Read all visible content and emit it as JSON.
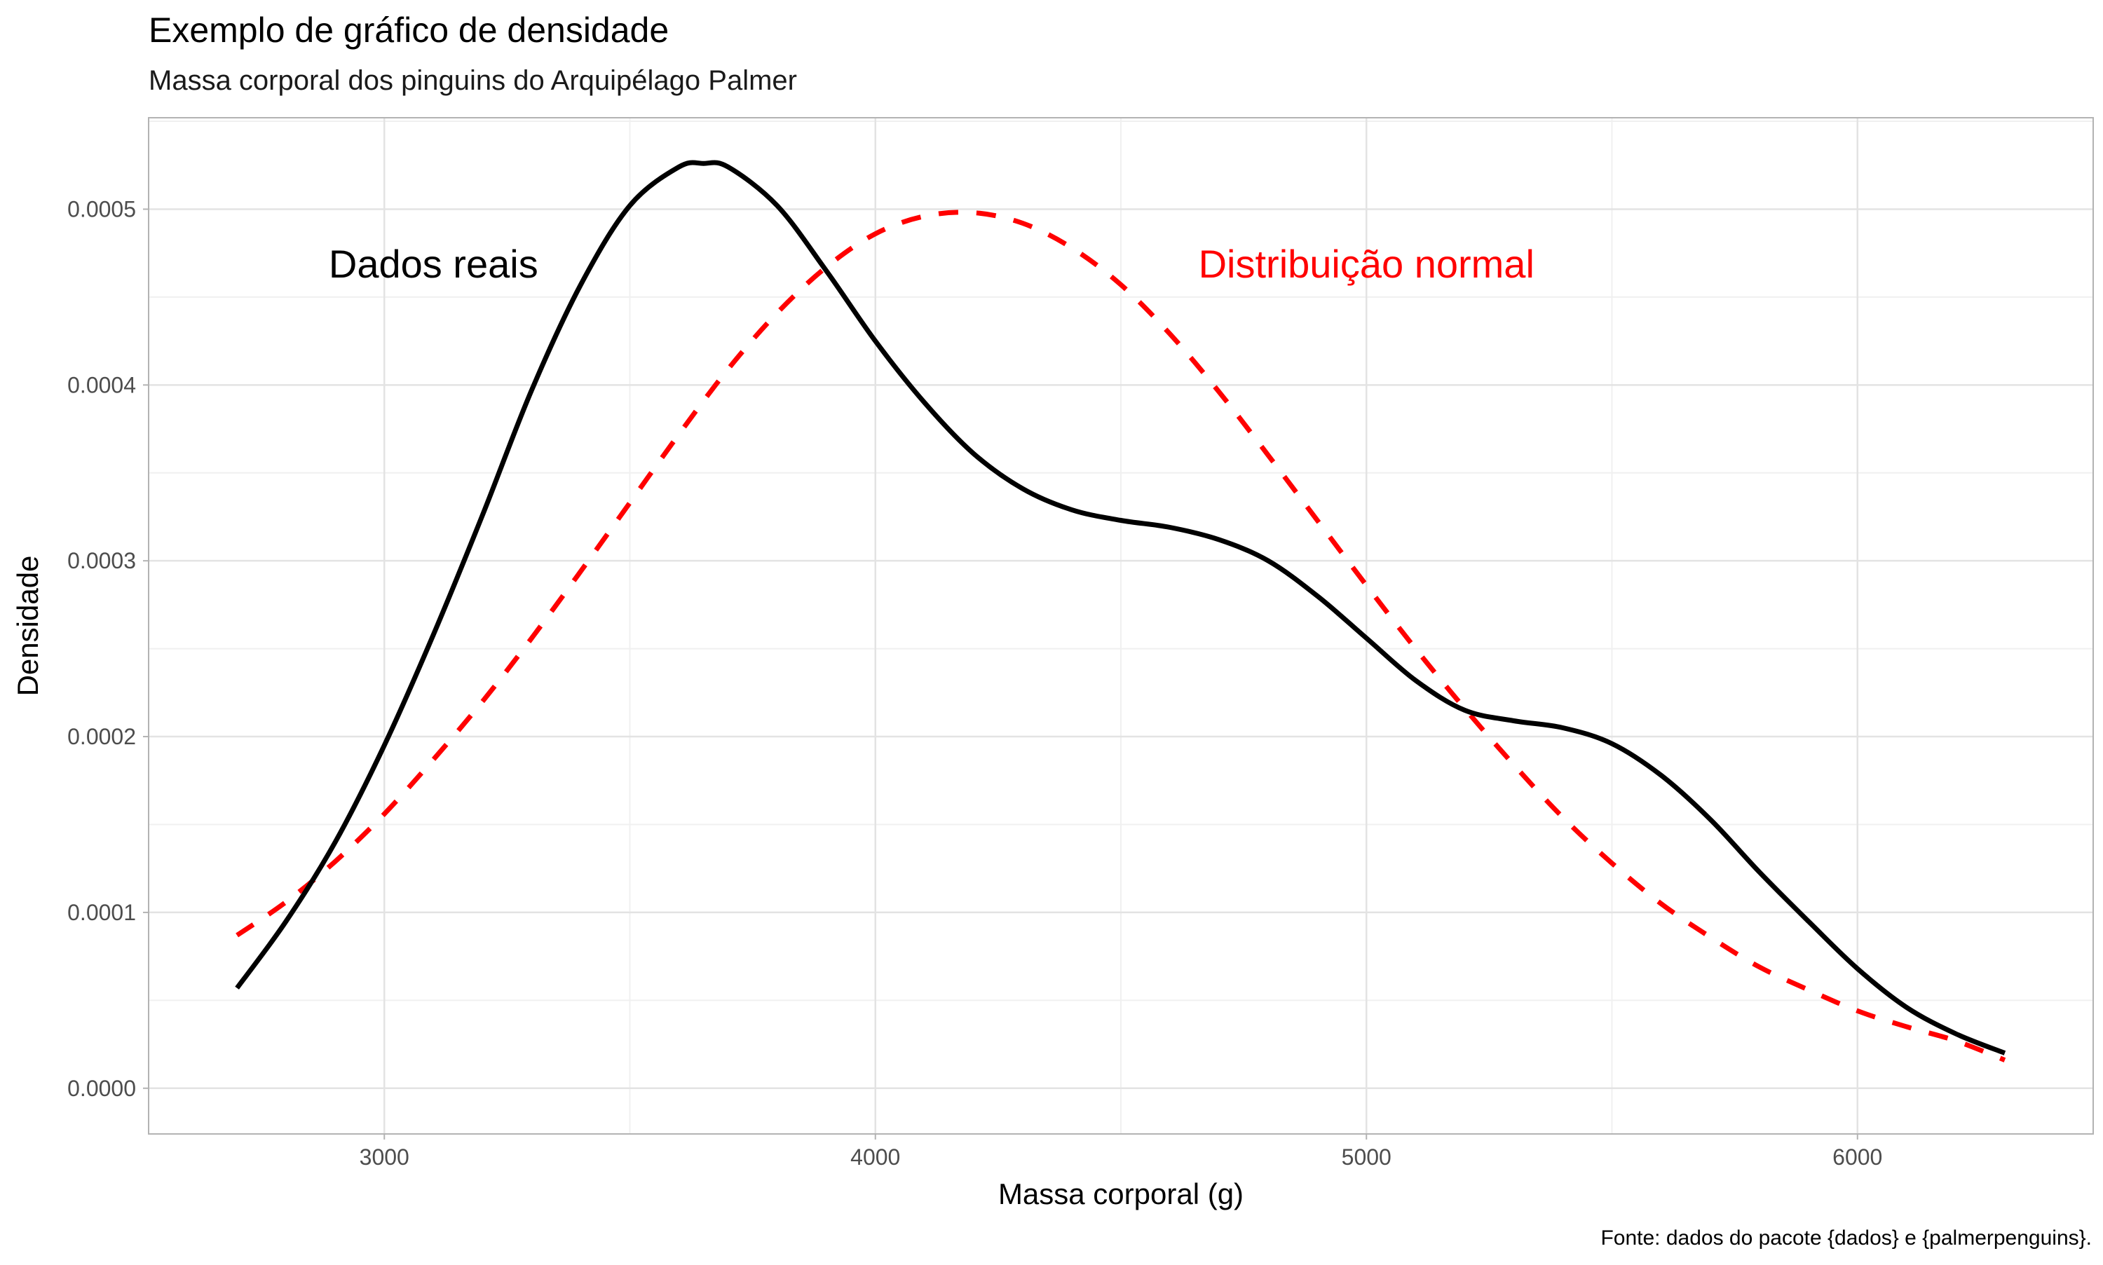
{
  "chart_data": {
    "type": "line",
    "title": "Exemplo de gráfico de densidade",
    "subtitle": "Massa corporal dos pinguins do Arquipélago Palmer",
    "xlabel": "Massa corporal (g)",
    "ylabel": "Densidade",
    "caption": "Fonte: dados do pacote {dados} e {palmerpenguins}.",
    "xlim": [
      2520,
      6480
    ],
    "ylim": [
      -2.6e-05,
      0.000552
    ],
    "x_ticks": [
      3000,
      4000,
      5000,
      6000
    ],
    "x_tick_labels": [
      "3000",
      "4000",
      "5000",
      "6000"
    ],
    "y_ticks": [
      0,
      0.0001,
      0.0002,
      0.0003,
      0.0004,
      0.0005
    ],
    "y_tick_labels": [
      "0.0000",
      "0.0001",
      "0.0002",
      "0.0003",
      "0.0004",
      "0.0005"
    ],
    "grid": true,
    "series": [
      {
        "style": "solid",
        "color": "#000000",
        "x": [
          2700,
          2800,
          2900,
          3000,
          3100,
          3200,
          3300,
          3400,
          3500,
          3600,
          3650,
          3700,
          3800,
          3900,
          4000,
          4100,
          4200,
          4300,
          4400,
          4500,
          4600,
          4700,
          4800,
          4900,
          5000,
          5100,
          5200,
          5300,
          5400,
          5500,
          5600,
          5700,
          5800,
          5900,
          6000,
          6100,
          6200,
          6300
        ],
        "y": [
          5.7e-05,
          9.5e-05,
          0.00014,
          0.000195,
          0.000258,
          0.000326,
          0.000397,
          0.000457,
          0.000502,
          0.000524,
          0.000526,
          0.000524,
          0.000502,
          0.000465,
          0.000425,
          0.00039,
          0.000361,
          0.000341,
          0.000329,
          0.000323,
          0.000319,
          0.000312,
          0.0003,
          0.00028,
          0.000256,
          0.000232,
          0.000215,
          0.000209,
          0.000205,
          0.000196,
          0.000178,
          0.000153,
          0.000123,
          9.5e-05,
          6.8e-05,
          4.6e-05,
          3.1e-05,
          2e-05
        ]
      },
      {
        "style": "dashed",
        "color": "#ff0000",
        "x": [
          2700,
          2800,
          2900,
          3000,
          3100,
          3200,
          3300,
          3400,
          3500,
          3600,
          3700,
          3800,
          3900,
          4000,
          4100,
          4200,
          4300,
          4400,
          4500,
          4600,
          4700,
          4800,
          4900,
          5000,
          5100,
          5200,
          5300,
          5400,
          5500,
          5600,
          5700,
          5800,
          5900,
          6000,
          6100,
          6200,
          6300
        ],
        "y": [
          8.7e-05,
          0.000106,
          0.000129,
          0.000156,
          0.000187,
          0.00022,
          0.000256,
          0.000294,
          0.000333,
          0.000372,
          0.000409,
          0.000441,
          0.000467,
          0.000486,
          0.000496,
          0.000498,
          0.000492,
          0.000478,
          0.000457,
          0.000429,
          0.000396,
          0.00036,
          0.000323,
          0.000286,
          0.00025,
          0.000216,
          0.000184,
          0.000154,
          0.000128,
          0.000105,
          8.6e-05,
          6.9e-05,
          5.6e-05,
          4.4e-05,
          3.5e-05,
          2.7e-05,
          1.6e-05
        ]
      }
    ],
    "annotations": [
      {
        "label": "Dados reais",
        "x": 3100,
        "y": 0.000469,
        "color": "#000000"
      },
      {
        "label": "Distribuição normal",
        "x": 5000,
        "y": 0.000469,
        "color": "#ff0000"
      }
    ]
  }
}
